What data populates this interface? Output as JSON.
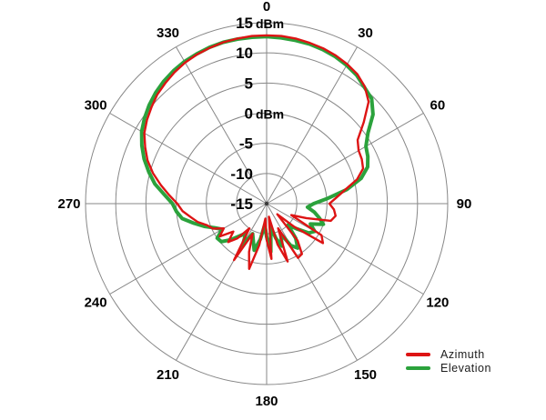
{
  "chart_data": {
    "type": "line",
    "coordinate_system": "polar",
    "title": "",
    "angle_unit": "deg",
    "clockwise_from_north": true,
    "angular_ticks_deg": [
      0,
      30,
      60,
      90,
      120,
      150,
      180,
      210,
      240,
      270,
      300,
      330
    ],
    "r_range": [
      -15,
      15
    ],
    "r_step": 5,
    "r_unit": "dBm",
    "radial_ticks": [
      {
        "value": 15,
        "label": "15",
        "unit": "dBm"
      },
      {
        "value": 10,
        "label": "10",
        "unit": ""
      },
      {
        "value": 5,
        "label": "5",
        "unit": ""
      },
      {
        "value": 0,
        "label": "0",
        "unit": "dBm"
      },
      {
        "value": -5,
        "label": "-5",
        "unit": ""
      },
      {
        "value": -10,
        "label": "-10",
        "unit": ""
      },
      {
        "value": -15,
        "label": "-15",
        "unit": ""
      }
    ],
    "grid": {
      "color": "#878787",
      "spokes_every_deg": 30
    },
    "legend": {
      "position": "bottom-right",
      "entries": [
        {
          "label": "Azimuth",
          "color": "#dd1414"
        },
        {
          "label": "Elevation",
          "color": "#2ba23c"
        }
      ]
    },
    "series": [
      {
        "name": "Azimuth",
        "color": "#dd1414",
        "line_width": 2.4,
        "points": [
          [
            0,
            12.9
          ],
          [
            5,
            12.9
          ],
          [
            10,
            12.8
          ],
          [
            15,
            12.6
          ],
          [
            20,
            12.4
          ],
          [
            25,
            12.1
          ],
          [
            30,
            11.7
          ],
          [
            35,
            11.2
          ],
          [
            40,
            10.3
          ],
          [
            45,
            8.9
          ],
          [
            50,
            6.0
          ],
          [
            55,
            3.4
          ],
          [
            60,
            2.6
          ],
          [
            65,
            2.4
          ],
          [
            70,
            2.0
          ],
          [
            75,
            0.5
          ],
          [
            80,
            -1.8
          ],
          [
            85,
            -3.4
          ],
          [
            90,
            -4.6
          ],
          [
            95,
            -3.8
          ],
          [
            100,
            -3.4
          ],
          [
            105,
            -4.0
          ],
          [
            110,
            -8.0
          ],
          [
            115,
            -10.5
          ],
          [
            120,
            -4.5
          ],
          [
            125,
            -3.6
          ],
          [
            130,
            -9.0
          ],
          [
            135,
            -12.5
          ],
          [
            140,
            -7.0
          ],
          [
            145,
            -4.8
          ],
          [
            150,
            -4.6
          ],
          [
            155,
            -10.5
          ],
          [
            160,
            -4.8
          ],
          [
            165,
            -8.0
          ],
          [
            170,
            -12.8
          ],
          [
            175,
            -5.8
          ],
          [
            180,
            -9.0
          ],
          [
            185,
            -12.5
          ],
          [
            190,
            -8.0
          ],
          [
            195,
            -3.8
          ],
          [
            200,
            -6.5
          ],
          [
            205,
            -9.5
          ],
          [
            210,
            -4.2
          ],
          [
            215,
            -10.0
          ],
          [
            220,
            -7.5
          ],
          [
            225,
            -6.0
          ],
          [
            230,
            -7.8
          ],
          [
            235,
            -5.5
          ],
          [
            240,
            -6.8
          ],
          [
            245,
            -5.2
          ],
          [
            250,
            -4.5
          ],
          [
            255,
            -3.2
          ],
          [
            260,
            -2.2
          ],
          [
            265,
            -1.0
          ],
          [
            270,
            -0.2
          ],
          [
            275,
            1.2
          ],
          [
            280,
            2.8
          ],
          [
            285,
            4.5
          ],
          [
            290,
            6.0
          ],
          [
            295,
            7.2
          ],
          [
            300,
            8.4
          ],
          [
            305,
            9.2
          ],
          [
            310,
            9.9
          ],
          [
            315,
            10.6
          ],
          [
            320,
            11.1
          ],
          [
            325,
            11.6
          ],
          [
            330,
            12.0
          ],
          [
            335,
            12.3
          ],
          [
            340,
            12.5
          ],
          [
            345,
            12.7
          ],
          [
            350,
            12.8
          ],
          [
            355,
            12.9
          ]
        ]
      },
      {
        "name": "Elevation",
        "color": "#2ba23c",
        "line_width": 4.0,
        "points": [
          [
            0,
            12.7
          ],
          [
            5,
            12.6
          ],
          [
            10,
            12.5
          ],
          [
            15,
            12.4
          ],
          [
            20,
            12.2
          ],
          [
            25,
            11.9
          ],
          [
            30,
            11.5
          ],
          [
            35,
            11.0
          ],
          [
            40,
            10.2
          ],
          [
            45,
            9.6
          ],
          [
            50,
            8.0
          ],
          [
            55,
            5.5
          ],
          [
            60,
            4.0
          ],
          [
            65,
            3.5
          ],
          [
            70,
            2.8
          ],
          [
            75,
            1.2
          ],
          [
            80,
            -1.5
          ],
          [
            85,
            -4.8
          ],
          [
            90,
            -7.2
          ],
          [
            95,
            -8.2
          ],
          [
            100,
            -7.0
          ],
          [
            105,
            -6.0
          ],
          [
            110,
            -5.0
          ],
          [
            115,
            -7.0
          ],
          [
            120,
            -5.8
          ],
          [
            125,
            -6.5
          ],
          [
            130,
            -8.5
          ],
          [
            135,
            -10.0
          ],
          [
            140,
            -7.5
          ],
          [
            145,
            -6.0
          ],
          [
            150,
            -7.0
          ],
          [
            155,
            -9.5
          ],
          [
            160,
            -7.5
          ],
          [
            165,
            -9.0
          ],
          [
            170,
            -11.0
          ],
          [
            175,
            -7.0
          ],
          [
            180,
            -9.5
          ],
          [
            185,
            -11.5
          ],
          [
            190,
            -9.0
          ],
          [
            195,
            -7.0
          ],
          [
            200,
            -8.5
          ],
          [
            205,
            -9.5
          ],
          [
            210,
            -7.0
          ],
          [
            215,
            -9.0
          ],
          [
            220,
            -8.0
          ],
          [
            225,
            -6.5
          ],
          [
            230,
            -5.2
          ],
          [
            235,
            -5.0
          ],
          [
            240,
            -6.5
          ],
          [
            245,
            -5.5
          ],
          [
            250,
            -4.0
          ],
          [
            255,
            -2.5
          ],
          [
            260,
            -0.8
          ],
          [
            265,
            0.0
          ],
          [
            270,
            0.6
          ],
          [
            275,
            2.0
          ],
          [
            280,
            3.8
          ],
          [
            285,
            5.2
          ],
          [
            290,
            6.6
          ],
          [
            295,
            7.8
          ],
          [
            300,
            8.9
          ],
          [
            305,
            9.7
          ],
          [
            310,
            10.4
          ],
          [
            315,
            11.0
          ],
          [
            320,
            11.5
          ],
          [
            325,
            11.9
          ],
          [
            330,
            12.2
          ],
          [
            335,
            12.4
          ],
          [
            340,
            12.6
          ],
          [
            345,
            12.7
          ],
          [
            350,
            12.7
          ],
          [
            355,
            12.7
          ]
        ]
      }
    ]
  }
}
